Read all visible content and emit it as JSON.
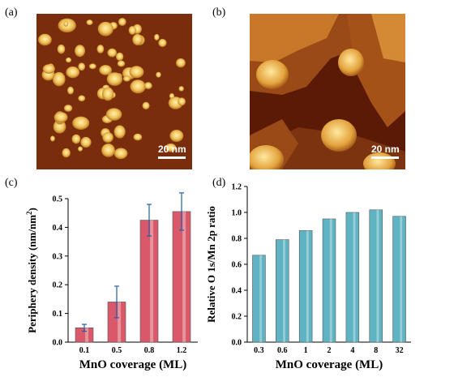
{
  "panels": {
    "a": {
      "label": "(a)",
      "scale": "20 nm"
    },
    "b": {
      "label": "(b)",
      "scale": "20 nm"
    },
    "c": {
      "label": "(c)"
    },
    "d": {
      "label": "(d)"
    }
  },
  "chart_data": [
    {
      "type": "bar",
      "panel": "c",
      "categories": [
        "0.1",
        "0.5",
        "0.8",
        "1.2"
      ],
      "values": [
        0.05,
        0.14,
        0.425,
        0.455
      ],
      "errors": [
        0.012,
        0.055,
        0.055,
        0.065
      ],
      "xlabel": "MnO coverage (ML)",
      "ylabel": "Periphery density (nm/nm",
      "ylabel_sup": "2",
      "ylabel_close": ")",
      "ylim": [
        0,
        0.5
      ],
      "yticks": [
        "0.0",
        "0.1",
        "0.2",
        "0.3",
        "0.4",
        "0.5"
      ],
      "bar_color": "#d9596b",
      "error_color": "#1f5fa8"
    },
    {
      "type": "bar",
      "panel": "d",
      "categories": [
        "0.3",
        "0.6",
        "1",
        "2",
        "4",
        "8",
        "32"
      ],
      "values": [
        0.67,
        0.79,
        0.86,
        0.95,
        1.0,
        1.02,
        0.97
      ],
      "xlabel": "MnO coverage (ML)",
      "ylabel": "Relative O 1s/Mn 2p ratio",
      "ylim": [
        0,
        1.2
      ],
      "yticks": [
        "0.0",
        "0.2",
        "0.4",
        "0.6",
        "0.8",
        "1.0",
        "1.2"
      ],
      "bar_color": "#5fb3c2"
    }
  ]
}
